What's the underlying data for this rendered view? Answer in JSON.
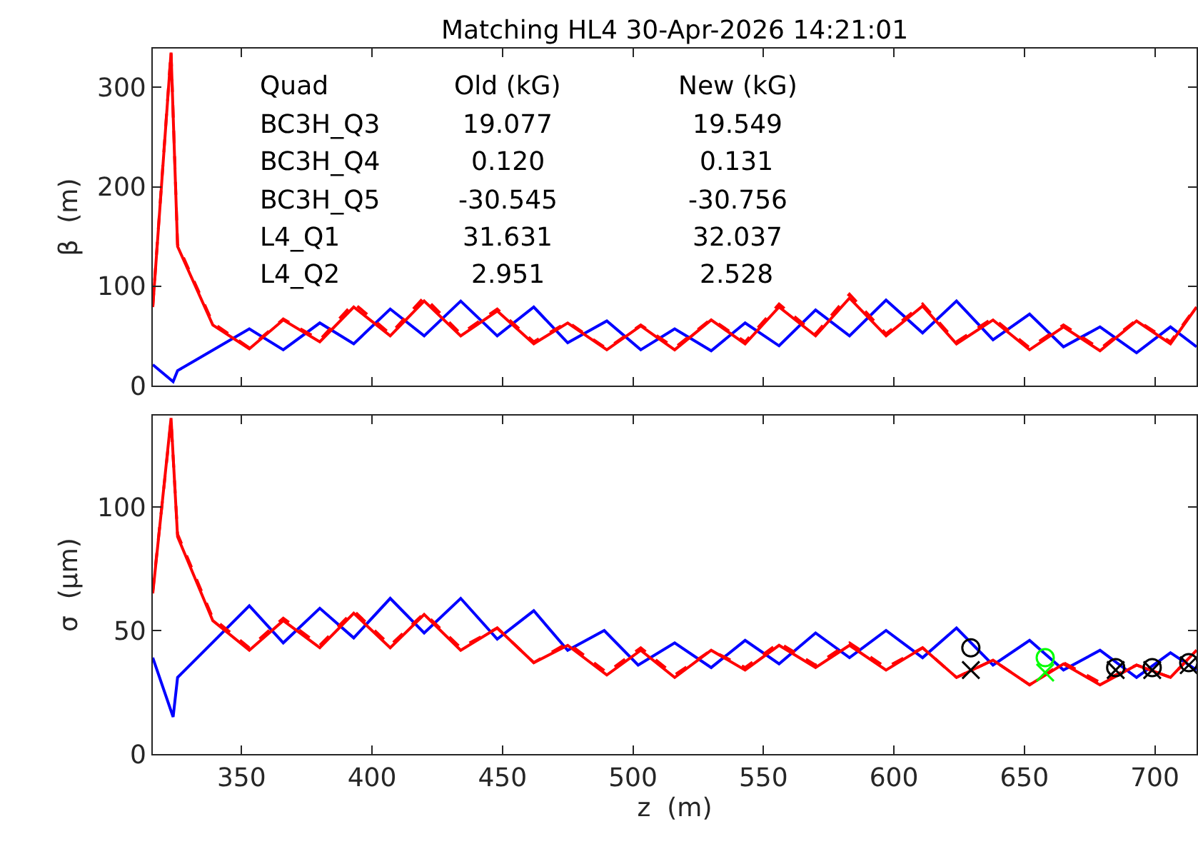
{
  "chart_data": [
    {
      "type": "line",
      "title": "Matching HL4 30-Apr-2026 14:21:01",
      "ylabel": "β  (m)",
      "xlim": [
        316,
        716
      ],
      "ylim": [
        0,
        339
      ],
      "xticks": [
        350,
        400,
        450,
        500,
        550,
        600,
        650,
        700
      ],
      "yticks": [
        0,
        100,
        200,
        300
      ],
      "tick_labels": "y",
      "annotations": [
        "Quad",
        "Old (kG)",
        "New (kG)",
        "BC3H_Q3",
        "19.077",
        "19.549",
        "BC3H_Q4",
        "0.120",
        "0.131",
        "BC3H_Q5",
        "-30.545",
        "-30.756",
        "L4_Q1",
        "31.631",
        "32.037",
        "L4_Q2",
        "2.951",
        "2.528"
      ],
      "series": [
        {
          "color": "#0000ff",
          "line_style": "solid",
          "x": [
            316,
            323.8,
            325.5,
            353,
            366,
            380,
            393,
            407,
            420,
            434,
            448,
            462,
            475,
            490,
            503,
            516,
            530,
            543,
            556,
            570,
            583,
            597,
            611,
            624,
            638,
            652,
            665,
            679,
            693,
            706,
            716
          ],
          "values": [
            21,
            4,
            15,
            57,
            36,
            63,
            42,
            77,
            50,
            85,
            50,
            79,
            43,
            65,
            36,
            57,
            35,
            63,
            40,
            76,
            50,
            86,
            53,
            85,
            46,
            72,
            39,
            59,
            33,
            59,
            39
          ]
        },
        {
          "color": "#ff0000",
          "line_style": "dashed",
          "x": [
            316,
            323,
            325.5,
            339,
            353,
            366,
            380,
            393,
            407,
            420,
            434,
            448,
            462,
            475,
            490,
            503,
            516,
            530,
            543,
            556,
            570,
            583,
            597,
            611,
            624,
            638,
            652,
            665,
            679,
            693,
            706,
            716
          ],
          "values": [
            80,
            336,
            142,
            63,
            38,
            67,
            46,
            83,
            52,
            89,
            52,
            77,
            44,
            64,
            37,
            61,
            38,
            67,
            44,
            82,
            52,
            92,
            52,
            82,
            44,
            68,
            38,
            61,
            37,
            66,
            44,
            80
          ]
        },
        {
          "color": "#ff0000",
          "line_style": "solid",
          "x": [
            316,
            323,
            325.5,
            339,
            353,
            366,
            380,
            393,
            407,
            420,
            434,
            448,
            462,
            475,
            490,
            503,
            516,
            530,
            543,
            556,
            570,
            583,
            597,
            611,
            624,
            638,
            652,
            665,
            679,
            693,
            706,
            716
          ],
          "values": [
            79,
            335,
            140,
            61,
            37,
            66,
            44,
            79,
            50,
            85,
            50,
            75,
            42,
            63,
            36,
            60,
            36,
            66,
            42,
            79,
            50,
            88,
            50,
            80,
            42,
            66,
            36,
            59,
            35,
            65,
            42,
            79
          ]
        }
      ]
    },
    {
      "type": "line",
      "xlabel": "z  (m)",
      "ylabel": "σ  (μm)",
      "xlim": [
        316,
        716
      ],
      "ylim": [
        0,
        137
      ],
      "xticks": [
        350,
        400,
        450,
        500,
        550,
        600,
        650,
        700
      ],
      "yticks": [
        0,
        50,
        100
      ],
      "series": [
        {
          "color": "#0000ff",
          "line_style": "solid",
          "x": [
            316,
            323.8,
            325.5,
            353,
            366,
            380,
            393,
            407,
            420,
            434,
            448,
            462,
            475,
            489,
            502,
            516,
            530,
            543,
            556,
            570,
            583,
            597,
            611,
            624,
            638,
            652,
            665,
            679,
            693,
            706,
            716
          ],
          "values": [
            39,
            15,
            31,
            60,
            45,
            59,
            47,
            63,
            49,
            63,
            46.5,
            58,
            42,
            50,
            36,
            45,
            35,
            46,
            36.5,
            49,
            39,
            50,
            39,
            51,
            36,
            46,
            34,
            42,
            31,
            41,
            34
          ]
        },
        {
          "color": "#ff0000",
          "line_style": "dashed",
          "x": [
            316,
            323,
            325.5,
            339,
            353,
            366,
            380,
            393,
            407,
            420,
            434,
            448,
            462,
            475,
            490,
            503,
            516,
            530,
            543,
            556,
            570,
            583,
            597,
            611,
            624,
            638,
            652,
            665,
            679,
            693,
            706,
            716
          ],
          "values": [
            66,
            135,
            89,
            55,
            43,
            55,
            44,
            58,
            44,
            57,
            43,
            51,
            37,
            45,
            33,
            43,
            32,
            42,
            35,
            45,
            36,
            45,
            35,
            43,
            31,
            38,
            28,
            37,
            29,
            36,
            31,
            42
          ]
        },
        {
          "color": "#ff0000",
          "line_style": "solid",
          "x": [
            316,
            323,
            325.5,
            339,
            353,
            366,
            380,
            393,
            407,
            420,
            434,
            448,
            462,
            475,
            490,
            503,
            516,
            530,
            543,
            556,
            570,
            583,
            597,
            611,
            624,
            638,
            652,
            665,
            679,
            693,
            706,
            716
          ],
          "values": [
            65,
            136,
            88,
            54,
            42,
            54,
            43,
            57,
            43,
            56.5,
            42,
            51,
            37,
            44,
            32,
            42,
            31,
            42,
            34,
            44,
            35,
            44,
            34,
            43,
            31,
            38,
            28,
            36.5,
            28,
            36,
            31,
            42
          ]
        },
        {
          "type": "scatter",
          "marker": "circle",
          "color": "#000000",
          "x": [
            629.5,
            685,
            699,
            713
          ],
          "values": [
            43,
            35,
            35,
            37
          ]
        },
        {
          "type": "scatter",
          "marker": "cross",
          "color": "#000000",
          "x": [
            629.5,
            685,
            699,
            713
          ],
          "values": [
            34,
            34,
            34,
            36
          ]
        },
        {
          "type": "scatter",
          "marker": "circle",
          "color": "#00ff00",
          "x": [
            658
          ],
          "values": [
            39
          ]
        },
        {
          "type": "scatter",
          "marker": "cross",
          "color": "#00ff00",
          "x": [
            658
          ],
          "values": [
            33
          ]
        }
      ]
    }
  ]
}
